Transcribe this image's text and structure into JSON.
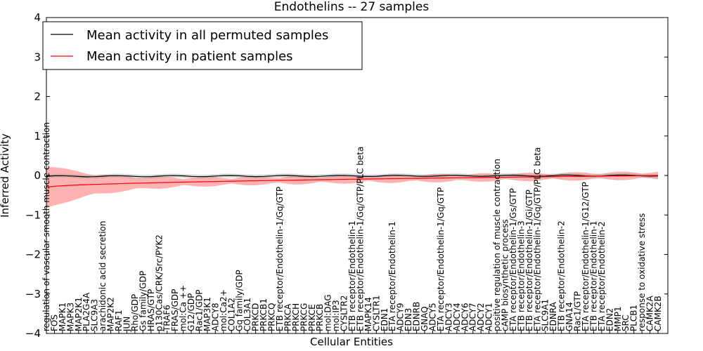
{
  "chart_data": {
    "type": "line",
    "title": "Endothelins -- 27 samples",
    "xlabel": "Cellular Entities",
    "ylabel": "Inferred Activity",
    "ylim": [
      -4,
      4
    ],
    "yticks": [
      "4",
      "3",
      "2",
      "1",
      "0",
      "−1",
      "−2",
      "−3",
      "−4"
    ],
    "legend": {
      "location": "top-left",
      "entries": [
        "Mean activity in all permuted samples",
        "Mean activity in patient samples"
      ]
    },
    "colors": {
      "permuted": "#000000",
      "patient": "#ff0000",
      "band": "#ff0000"
    },
    "categories": [
      "regulation of vascular smooth muscle contraction",
      "FOS",
      "MAPK1",
      "MAPK3",
      "MAP2K1",
      "PLA2G4A",
      "SLC9A3",
      "arachidonic acid secretion",
      "MAP2K2",
      "RAF1",
      "JUN",
      "Rho/GDP",
      "Gs family/GDP",
      "HRAS/GTP",
      "p130Cas/CRK/Src/PYK2",
      "TRAF6",
      "FRAS/GDP",
      "mol:Ca ++",
      "G12/GDP",
      "Rac1/GDP",
      "MAP3K1",
      "ADCY8",
      "mol:Ca2+",
      "COL1A2",
      "Gq family/GDP",
      "COL3A1",
      "PRKCD",
      "PRKCB1",
      "PRKCQ",
      "ETB receptor/Endothelin-1/Gq/GTP",
      "PRKCA",
      "PRKCH",
      "PRKCG",
      "PRKCE",
      "PRKCB",
      "mol:DAG",
      "mol:IP3",
      "CYSLTR2",
      "ETB receptor/Endothelin-1",
      "ETB receptor/Endothelin-1/Gq/GTP/PLC beta",
      "MAPK14",
      "CYSLTR1",
      "EDN1",
      "ETA receptor/Endothelin-1",
      "ADCY9",
      "EDN3",
      "EDNRB",
      "GNAQ",
      "ADCY5",
      "ETA receptor/Endothelin-1/Gq/GTP",
      "ADCY3",
      "ADCY4",
      "ADCY6",
      "ADCY7",
      "ADCY2",
      "ADCY1",
      "positive regulation of muscle contraction",
      "cAMP biosynthetic process",
      "ETA receptor/Endothelin-1/Gs/GTP",
      "ETB receptor/Endothelin-3",
      "ETB receptor/Endothelin-1/Gi/GTP",
      "ETA receptor/Endothelin-1/Gq/GTP/PLC beta",
      "SLC9A1",
      "EDNRA",
      "ETB receptor/Endothelin-2",
      "GNA14",
      "Rac1/GTP",
      "ETA receptor/Endothelin-1/G12/GTP",
      "ETB receptor/Endothelin-1",
      "ETA receptor/Endothelin-2",
      "EDN2",
      "MMP1",
      "SRC",
      "PLCB1",
      "response to oxidative stress",
      "CAMK2A",
      "CAMK2B"
    ],
    "series": [
      {
        "name": "Mean activity in all permuted samples",
        "start": -0.02,
        "end": 0.0
      },
      {
        "name": "Mean activity in patient samples",
        "start": -0.3,
        "end": 0.0
      }
    ]
  }
}
